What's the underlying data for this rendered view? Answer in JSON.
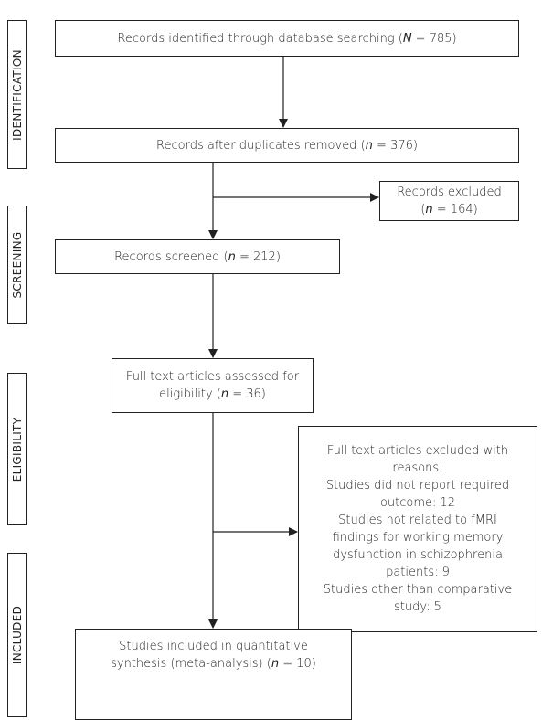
{
  "stages": [
    "IDENTIFICATION",
    "SCREENING",
    "ELIGIBILITY",
    "INCLUDED"
  ],
  "nodes": [
    {
      "lines": [
        [
          "Records identified through database searching (",
          "N",
          " = 785)"
        ]
      ]
    },
    {
      "lines": [
        [
          "Records after duplicates removed (",
          "n",
          " = 376)"
        ]
      ]
    },
    {
      "lines": [
        [
          "Records excluded"
        ],
        [
          "(",
          "n",
          " = 164)"
        ]
      ]
    },
    {
      "lines": [
        [
          "Records screened (",
          "n",
          " = 212)"
        ]
      ]
    },
    {
      "lines": [
        [
          "Full text articles assessed for"
        ],
        [
          "eligibility (",
          "n",
          " = 36)"
        ]
      ]
    },
    {
      "lines": [
        [
          "Full text articles excluded with"
        ],
        [
          "reasons:"
        ],
        [
          "Studies did not report required"
        ],
        [
          "outcome: 12"
        ],
        [
          "Studies not related to fMRI"
        ],
        [
          "findings for working memory"
        ],
        [
          "dysfunction in schizophrenia"
        ],
        [
          "patients: 9"
        ],
        [
          "Studies other than comparative"
        ],
        [
          "study: 5"
        ]
      ]
    },
    {
      "lines": [
        [
          "Studies included in quantitative"
        ],
        [
          "synthesis (meta-analysis) (",
          "n",
          " = 10)"
        ]
      ]
    }
  ]
}
